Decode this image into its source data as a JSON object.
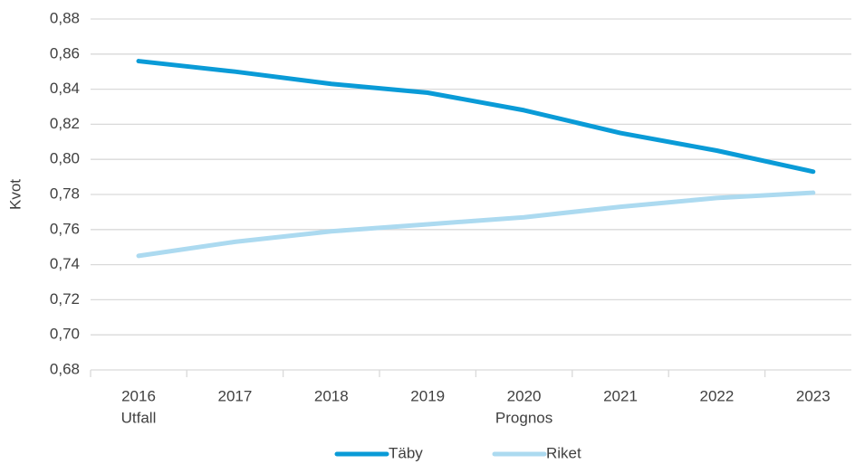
{
  "chart_data": {
    "type": "line",
    "y_axis_label": "Kvot",
    "categories": [
      "2016",
      "2017",
      "2018",
      "2019",
      "2020",
      "2021",
      "2022",
      "2023"
    ],
    "category_groups": [
      "Utfall",
      null,
      null,
      null,
      "Prognos",
      null,
      null,
      null
    ],
    "series": [
      {
        "name": "Täby",
        "color": "#0a9bd7",
        "values": [
          0.856,
          0.85,
          0.843,
          0.838,
          0.828,
          0.815,
          0.805,
          0.793
        ]
      },
      {
        "name": "Riket",
        "color": "#acdaf0",
        "values": [
          0.745,
          0.753,
          0.759,
          0.763,
          0.767,
          0.773,
          0.778,
          0.781
        ]
      }
    ],
    "ylim": [
      0.68,
      0.88
    ],
    "yticks": [
      {
        "value": 0.68,
        "label": "0,68"
      },
      {
        "value": 0.7,
        "label": "0,70"
      },
      {
        "value": 0.72,
        "label": "0,72"
      },
      {
        "value": 0.74,
        "label": "0,74"
      },
      {
        "value": 0.76,
        "label": "0,76"
      },
      {
        "value": 0.78,
        "label": "0,78"
      },
      {
        "value": 0.8,
        "label": "0,80"
      },
      {
        "value": 0.82,
        "label": "0,82"
      },
      {
        "value": 0.84,
        "label": "0,84"
      },
      {
        "value": 0.86,
        "label": "0,86"
      },
      {
        "value": 0.88,
        "label": "0,88"
      }
    ],
    "grid": true,
    "legend": "bottom"
  }
}
